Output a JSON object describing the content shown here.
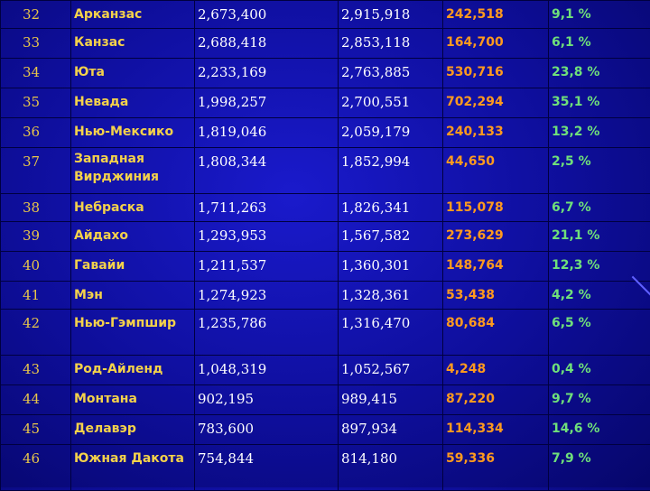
{
  "rows": [
    {
      "rank": "32",
      "state": "Арканзас",
      "pop1": "2,673,400",
      "pop2": "2,915,918",
      "change": "242,518",
      "pct": "9,1 %"
    },
    {
      "rank": "33",
      "state": "Канзас",
      "pop1": "2,688,418",
      "pop2": "2,853,118",
      "change": "164,700",
      "pct": "6,1 %"
    },
    {
      "rank": "34",
      "state": "Юта",
      "pop1": "2,233,169",
      "pop2": "2,763,885",
      "change": "530,716",
      "pct": "23,8 %"
    },
    {
      "rank": "35",
      "state": "Невада",
      "pop1": "1,998,257",
      "pop2": "2,700,551",
      "change": "702,294",
      "pct": "35,1 %"
    },
    {
      "rank": "36",
      "state": "Нью-Мексико",
      "pop1": "1,819,046",
      "pop2": "2,059,179",
      "change": "240,133",
      "pct": "13,2 %"
    },
    {
      "rank": "37",
      "state": "Западная Вирджиния",
      "pop1": "1,808,344",
      "pop2": "1,852,994",
      "change": "44,650",
      "pct": "2,5 %"
    },
    {
      "rank": "38",
      "state": "Небраска",
      "pop1": "1,711,263",
      "pop2": "1,826,341",
      "change": "115,078",
      "pct": "6,7 %"
    },
    {
      "rank": "39",
      "state": "Айдахо",
      "pop1": "1,293,953",
      "pop2": "1,567,582",
      "change": "273,629",
      "pct": "21,1 %"
    },
    {
      "rank": "40",
      "state": "Гавайи",
      "pop1": "1,211,537",
      "pop2": "1,360,301",
      "change": "148,764",
      "pct": "12,3 %"
    },
    {
      "rank": "41",
      "state": "Мэн",
      "pop1": "1,274,923",
      "pop2": "1,328,361",
      "change": "53,438",
      "pct": "4,2 %"
    },
    {
      "rank": "42",
      "state": "Нью-Гэмпшир",
      "pop1": "1,235,786",
      "pop2": "1,316,470",
      "change": "80,684",
      "pct": "6,5 %"
    },
    {
      "rank": "43",
      "state": "Род-Айленд",
      "pop1": "1,048,319",
      "pop2": "1,052,567",
      "change": "4,248",
      "pct": "0,4 %"
    },
    {
      "rank": "44",
      "state": "Монтана",
      "pop1": "902,195",
      "pop2": "989,415",
      "change": "87,220",
      "pct": "9,7 %"
    },
    {
      "rank": "45",
      "state": "Делавэр",
      "pop1": "783,600",
      "pop2": "897,934",
      "change": "114,334",
      "pct": "14,6 %"
    },
    {
      "rank": "46",
      "state": "Южная Дакота",
      "pop1": "754,844",
      "pop2": "814,180",
      "change": "59,336",
      "pct": "7,9 %"
    }
  ],
  "colors": {
    "background": "#1414b4",
    "rank": "#e8c64a",
    "state": "#f4d24a",
    "population": "#ffffff",
    "change": "#ff9a1e",
    "percent": "#6fe07a"
  }
}
